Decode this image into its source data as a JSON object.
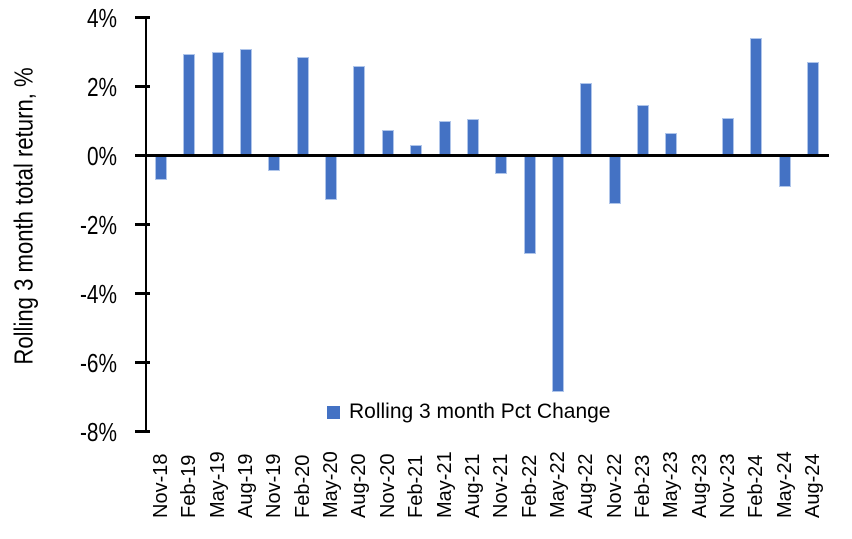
{
  "chart_data": {
    "type": "bar",
    "title": "",
    "xlabel": "",
    "ylabel": "Rolling 3 month total return, %",
    "ylim": [
      -8,
      4
    ],
    "ytick_step": 2,
    "ytick_labels": [
      "4%",
      "2%",
      "0%",
      "-2%",
      "-4%",
      "-6%",
      "-8%"
    ],
    "grid": false,
    "legend": {
      "label": "Rolling 3 month Pct Change",
      "position": "bottom-center"
    },
    "colors": {
      "bar_fill": "#4472C4",
      "bar_border": "#AFC5EA",
      "axis": "#000000",
      "text": "#000000",
      "background": "#FFFFFF"
    },
    "categories": [
      "Nov-18",
      "Feb-19",
      "May-19",
      "Aug-19",
      "Nov-19",
      "Feb-20",
      "May-20",
      "Aug-20",
      "Nov-20",
      "Feb-21",
      "May-21",
      "Aug-21",
      "Nov-21",
      "Feb-22",
      "May-22",
      "Aug-22",
      "Nov-22",
      "Feb-23",
      "May-23",
      "Aug-23",
      "Nov-23",
      "Feb-24",
      "May-24",
      "Aug-24"
    ],
    "values": [
      -0.7,
      2.95,
      3.0,
      3.1,
      -0.45,
      2.85,
      -1.3,
      2.6,
      0.75,
      0.3,
      1.0,
      1.05,
      -0.55,
      -2.85,
      -6.85,
      2.1,
      -1.4,
      1.45,
      0.65,
      0,
      1.1,
      3.4,
      -0.9,
      2.7
    ]
  }
}
